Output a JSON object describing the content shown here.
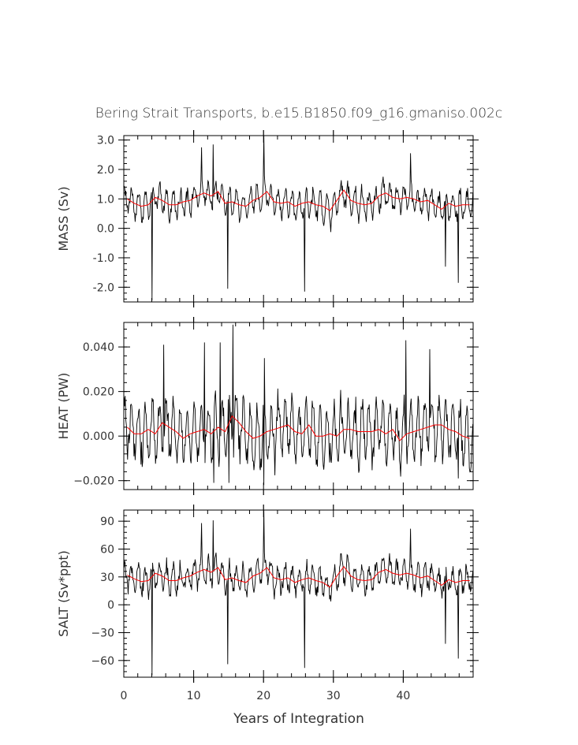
{
  "chart_data": {
    "type": "line",
    "title": "Bering Strait Transports, b.e15.B1850.f09_g16.gmaniso.002c",
    "xlabel": "Years of Integration",
    "xlim": [
      0,
      50
    ],
    "xticks": [
      "0",
      "10",
      "20",
      "30",
      "40"
    ],
    "colors": {
      "raw": "#000000",
      "smooth": "#ff0000",
      "axes": "#000000"
    },
    "panels": [
      {
        "name": "mass",
        "ylabel": "MASS (Sv)",
        "ylim": [
          -2.5,
          3.15
        ],
        "yticks": [
          -2.0,
          -1.0,
          0.0,
          1.0,
          2.0,
          3.0
        ],
        "yticklabels": [
          "-2.0",
          "-1.0",
          "0.0",
          "1.0",
          "2.0",
          "3.0"
        ],
        "series": [
          {
            "name": "monthly",
            "stats": {
              "mean": 0.85,
              "amp": 0.42,
              "noise": 0.25
            },
            "extremes": [
              {
                "x": 4.0,
                "y": -2.45
              },
              {
                "x": 11.1,
                "y": 2.75
              },
              {
                "x": 12.8,
                "y": 2.85
              },
              {
                "x": 14.9,
                "y": -2.05
              },
              {
                "x": 20.0,
                "y": 3.15
              },
              {
                "x": 25.9,
                "y": -2.15
              },
              {
                "x": 41.0,
                "y": 2.55
              },
              {
                "x": 47.9,
                "y": -1.85
              },
              {
                "x": 46.0,
                "y": -1.3
              }
            ]
          },
          {
            "name": "annual-smooth",
            "x": [
              0.5,
              1.5,
              2.5,
              3.5,
              4.5,
              5.5,
              6.5,
              7.5,
              8.5,
              9.5,
              10.5,
              11.5,
              12.5,
              13.5,
              14.5,
              15.5,
              16.5,
              17.5,
              18.5,
              19.5,
              20.5,
              21.5,
              22.5,
              23.5,
              24.5,
              25.5,
              26.5,
              27.5,
              28.5,
              29.5,
              30.5,
              31.5,
              32.5,
              33.5,
              34.5,
              35.5,
              36.5,
              37.5,
              38.5,
              39.5,
              40.5,
              41.5,
              42.5,
              43.5,
              44.5,
              45.5,
              46.5,
              47.5,
              48.5,
              49.5
            ],
            "y": [
              1.0,
              0.85,
              0.75,
              0.8,
              1.05,
              0.95,
              0.8,
              0.8,
              0.9,
              0.95,
              1.1,
              1.2,
              1.1,
              1.25,
              0.85,
              0.9,
              0.8,
              0.75,
              0.95,
              1.05,
              1.25,
              0.9,
              0.85,
              0.9,
              0.75,
              0.85,
              0.9,
              0.8,
              0.75,
              0.6,
              0.95,
              1.3,
              0.95,
              0.85,
              0.8,
              0.85,
              1.1,
              1.2,
              1.05,
              1.0,
              1.05,
              1.0,
              0.9,
              0.95,
              0.8,
              0.65,
              0.85,
              0.75,
              0.8,
              0.8
            ]
          }
        ]
      },
      {
        "name": "heat",
        "ylabel": "HEAT (PW)",
        "ylim": [
          -0.024,
          0.051
        ],
        "yticks": [
          -0.02,
          0.0,
          0.02,
          0.04
        ],
        "yticklabels": [
          "−0.020",
          "0.000",
          "0.020",
          "0.040"
        ],
        "series": [
          {
            "name": "monthly",
            "stats": {
              "mean": 0.003,
              "amp": 0.012,
              "noise": 0.006
            },
            "extremes": [
              {
                "x": 5.7,
                "y": 0.041
              },
              {
                "x": 11.5,
                "y": 0.042
              },
              {
                "x": 13.8,
                "y": 0.042
              },
              {
                "x": 15.6,
                "y": 0.05
              },
              {
                "x": 12.9,
                "y": -0.021
              },
              {
                "x": 15.0,
                "y": -0.021
              },
              {
                "x": 20.1,
                "y": 0.035
              },
              {
                "x": 20.0,
                "y": -0.022
              },
              {
                "x": 40.4,
                "y": 0.043
              },
              {
                "x": 43.8,
                "y": 0.039
              },
              {
                "x": 47.9,
                "y": -0.019
              },
              {
                "x": 49.5,
                "y": -0.016
              }
            ]
          },
          {
            "name": "annual-smooth",
            "x": [
              0.5,
              1.5,
              2.5,
              3.5,
              4.5,
              5.5,
              6.5,
              7.5,
              8.5,
              9.5,
              10.5,
              11.5,
              12.5,
              13.5,
              14.5,
              15.5,
              16.5,
              17.5,
              18.5,
              19.5,
              20.5,
              21.5,
              22.5,
              23.5,
              24.5,
              25.5,
              26.5,
              27.5,
              28.5,
              29.5,
              30.5,
              31.5,
              32.5,
              33.5,
              34.5,
              35.5,
              36.5,
              37.5,
              38.5,
              39.5,
              40.5,
              41.5,
              42.5,
              43.5,
              44.5,
              45.5,
              46.5,
              47.5,
              48.5,
              49.5
            ],
            "y": [
              0.004,
              0.001,
              0.001,
              0.003,
              0.001,
              0.006,
              0.004,
              0.002,
              -0.001,
              0.001,
              0.002,
              0.003,
              0.001,
              0.004,
              0.002,
              0.009,
              0.006,
              0.002,
              -0.001,
              0.0,
              0.002,
              0.003,
              0.004,
              0.005,
              0.002,
              0.001,
              0.005,
              0.0,
              0.0,
              0.001,
              0.0,
              0.003,
              0.003,
              0.002,
              0.002,
              0.002,
              0.003,
              0.001,
              0.003,
              -0.002,
              0.001,
              0.002,
              0.003,
              0.004,
              0.005,
              0.005,
              0.003,
              0.002,
              0.0,
              -0.001
            ]
          }
        ]
      },
      {
        "name": "salt",
        "ylabel": "SALT (Sv*ppt)",
        "ylim": [
          -78,
          102
        ],
        "yticks": [
          -60,
          -30,
          0,
          30,
          60,
          90
        ],
        "yticklabels": [
          "−60",
          "−30",
          "0",
          "30",
          "60",
          "90"
        ],
        "series": [
          {
            "name": "monthly",
            "stats": {
              "mean": 28,
              "amp": 13,
              "noise": 8
            },
            "extremes": [
              {
                "x": 4.0,
                "y": -76
              },
              {
                "x": 11.1,
                "y": 88
              },
              {
                "x": 12.8,
                "y": 91
              },
              {
                "x": 14.9,
                "y": -64
              },
              {
                "x": 20.0,
                "y": 102
              },
              {
                "x": 25.9,
                "y": -68
              },
              {
                "x": 41.0,
                "y": 82
              },
              {
                "x": 47.9,
                "y": -58
              },
              {
                "x": 46.0,
                "y": -42
              }
            ]
          },
          {
            "name": "annual-smooth",
            "x": [
              0.5,
              1.5,
              2.5,
              3.5,
              4.5,
              5.5,
              6.5,
              7.5,
              8.5,
              9.5,
              10.5,
              11.5,
              12.5,
              13.5,
              14.5,
              15.5,
              16.5,
              17.5,
              18.5,
              19.5,
              20.5,
              21.5,
              22.5,
              23.5,
              24.5,
              25.5,
              26.5,
              27.5,
              28.5,
              29.5,
              30.5,
              31.5,
              32.5,
              33.5,
              34.5,
              35.5,
              36.5,
              37.5,
              38.5,
              39.5,
              40.5,
              41.5,
              42.5,
              43.5,
              44.5,
              45.5,
              46.5,
              47.5,
              48.5,
              49.5
            ],
            "y": [
              32,
              28,
              25,
              26,
              34,
              31,
              26,
              26,
              29,
              31,
              35,
              38,
              35,
              40,
              27,
              29,
              26,
              24,
              31,
              34,
              40,
              29,
              27,
              29,
              24,
              27,
              29,
              26,
              24,
              19,
              31,
              41,
              31,
              27,
              26,
              27,
              35,
              38,
              34,
              32,
              34,
              32,
              29,
              31,
              26,
              21,
              27,
              24,
              26,
              26
            ]
          }
        ]
      }
    ]
  }
}
